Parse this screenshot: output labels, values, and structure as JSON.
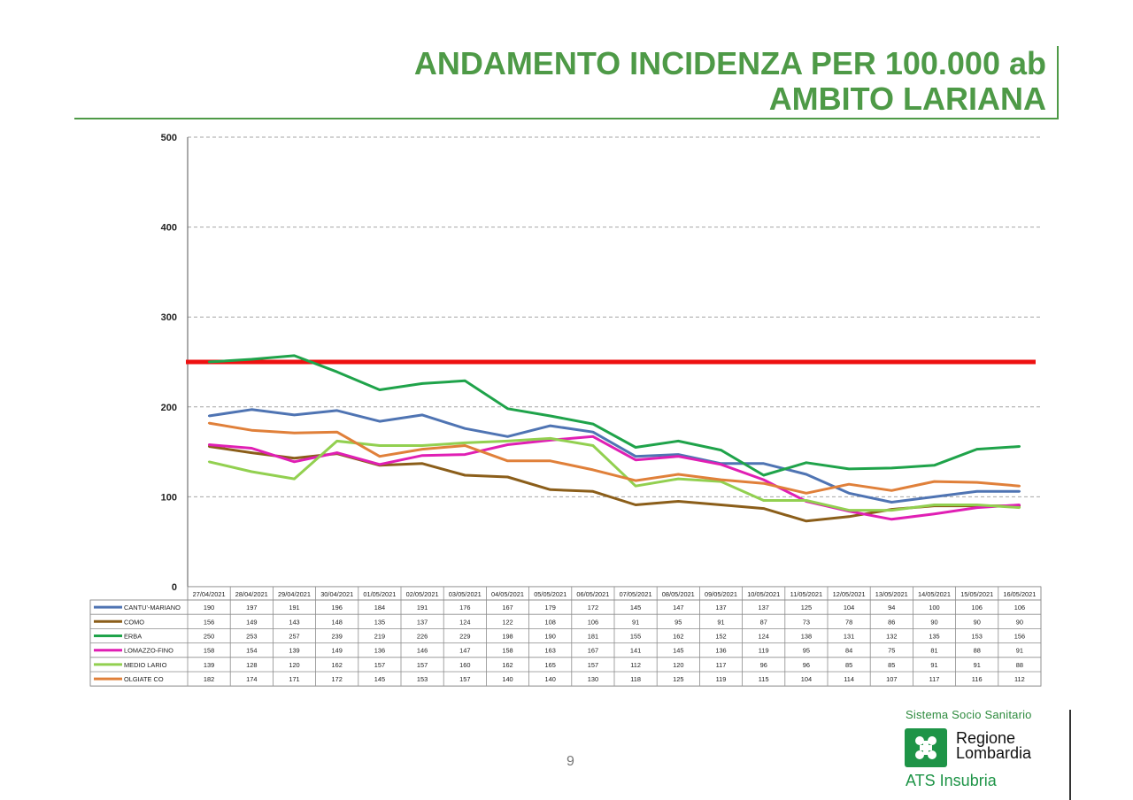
{
  "page": {
    "title_line1": "ANDAMENTO INCIDENZA PER 100.000 ab",
    "title_line2": "AMBITO LARIANA",
    "page_number": "9"
  },
  "logo": {
    "top_text": "Sistema Socio Sanitario",
    "name_line1": "Regione",
    "name_line2": "Lombardia",
    "bottom_text": "ATS Insubria"
  },
  "colors": {
    "title": "#4e9a47",
    "threshold": "#ee1111"
  },
  "chart_data": {
    "type": "line",
    "ylim": [
      0,
      500
    ],
    "yticks": [
      0,
      100,
      200,
      300,
      400,
      500
    ],
    "grid": true,
    "threshold": 250,
    "x": [
      "27/04/2021",
      "28/04/2021",
      "29/04/2021",
      "30/04/2021",
      "01/05/2021",
      "02/05/2021",
      "03/05/2021",
      "04/05/2021",
      "05/05/2021",
      "06/05/2021",
      "07/05/2021",
      "08/05/2021",
      "09/05/2021",
      "10/05/2021",
      "11/05/2021",
      "12/05/2021",
      "13/05/2021",
      "14/05/2021",
      "15/05/2021",
      "16/05/2021"
    ],
    "series": [
      {
        "name": "CANTU'-MARIANO",
        "color": "#4f74b3",
        "values": [
          190,
          197,
          191,
          196,
          184,
          191,
          176,
          167,
          179,
          172,
          145,
          147,
          137,
          137,
          125,
          104,
          94,
          100,
          106,
          106
        ]
      },
      {
        "name": "COMO",
        "color": "#8b5e1a",
        "values": [
          156,
          149,
          143,
          148,
          135,
          137,
          124,
          122,
          108,
          106,
          91,
          95,
          91,
          87,
          73,
          78,
          86,
          90,
          90,
          90
        ]
      },
      {
        "name": "ERBA",
        "color": "#1fa34a",
        "values": [
          250,
          253,
          257,
          239,
          219,
          226,
          229,
          198,
          190,
          181,
          155,
          162,
          152,
          124,
          138,
          131,
          132,
          135,
          153,
          156
        ]
      },
      {
        "name": "LOMAZZO-FINO",
        "color": "#e01fb4",
        "values": [
          158,
          154,
          139,
          149,
          136,
          146,
          147,
          158,
          163,
          167,
          141,
          145,
          136,
          119,
          95,
          84,
          75,
          81,
          88,
          91
        ]
      },
      {
        "name": "MEDIO LARIO",
        "color": "#92d050",
        "values": [
          139,
          128,
          120,
          162,
          157,
          157,
          160,
          162,
          165,
          157,
          112,
          120,
          117,
          96,
          96,
          85,
          85,
          91,
          91,
          88
        ]
      },
      {
        "name": "OLGIATE CO",
        "color": "#e0803a",
        "values": [
          182,
          174,
          171,
          172,
          145,
          153,
          157,
          140,
          140,
          130,
          118,
          125,
          119,
          115,
          104,
          114,
          107,
          117,
          116,
          112
        ]
      }
    ]
  }
}
